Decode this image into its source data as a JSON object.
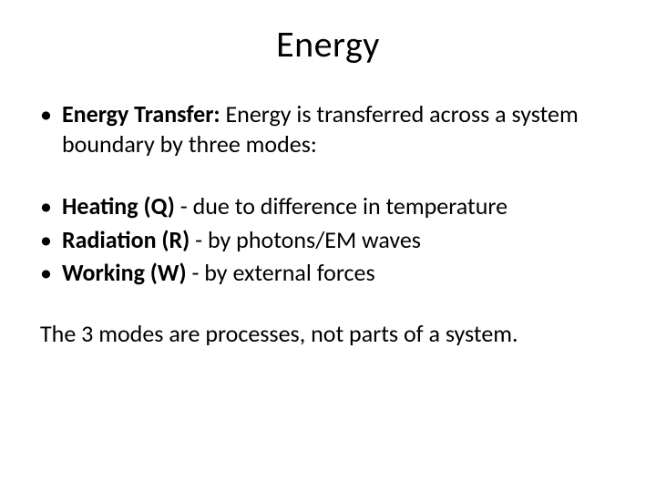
{
  "title": "Energy",
  "intro": {
    "bold": "Energy Transfer:",
    "rest": "  Energy is transferred across a system boundary by three modes:"
  },
  "modes": [
    {
      "bold": "Heating  (Q)",
      "rest": " - due to difference in temperature"
    },
    {
      "bold": "Radiation  (R)",
      "rest": " - by photons/EM waves"
    },
    {
      "bold": "Working  (W) ",
      "rest": " - by external forces"
    }
  ],
  "footer": "The 3 modes are processes, not parts of a system.",
  "style": {
    "background_color": "#ffffff",
    "text_color": "#000000",
    "title_fontsize_pt": 40,
    "body_fontsize_pt": 26,
    "font_family": "Calibri"
  }
}
